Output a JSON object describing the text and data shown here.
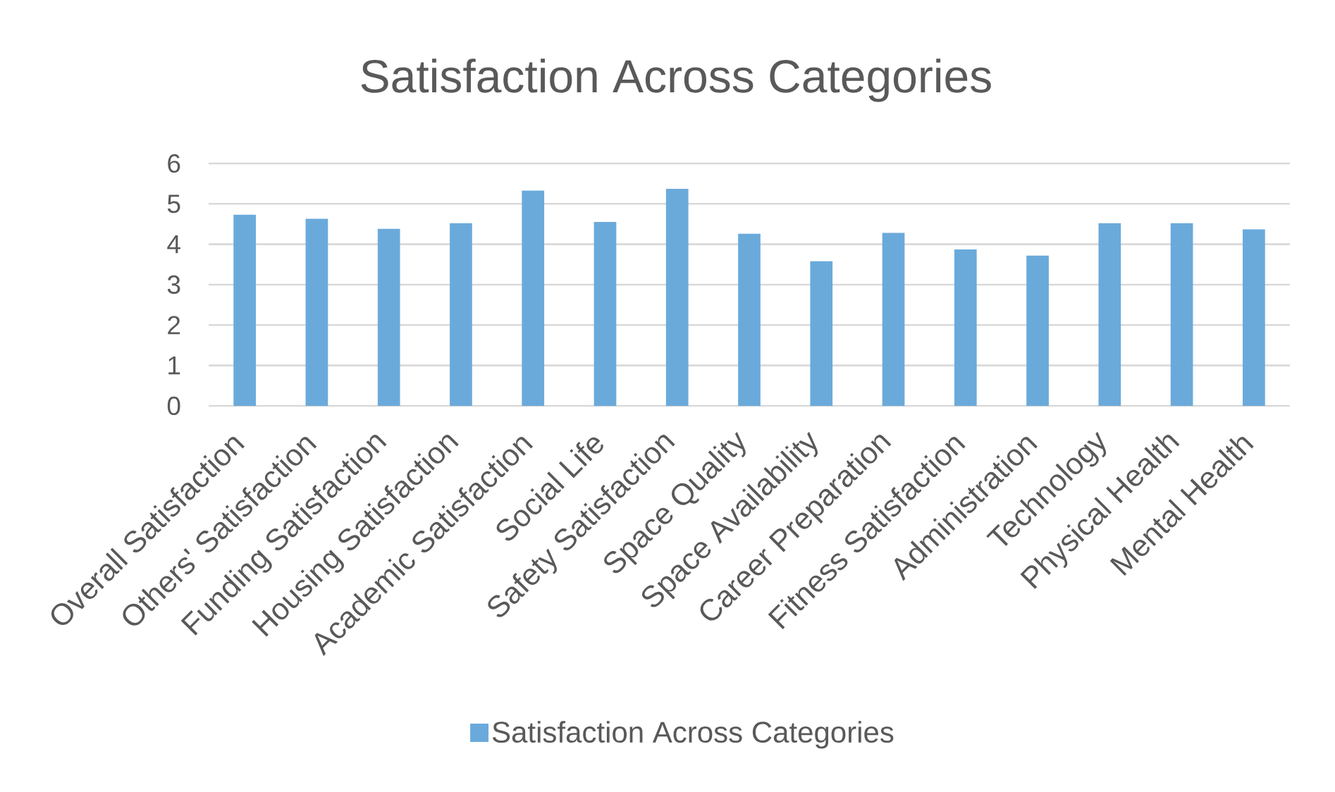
{
  "chart_data": {
    "type": "bar",
    "title": "Satisfaction Across Categories",
    "categories": [
      "Overall Satisfaction",
      "Others' Satisfaction",
      "Funding Satisfaction",
      "Housing Satisfaction",
      "Academic Satisfaction",
      "Social Life",
      "Safety Satisfaction",
      "Space Quality",
      "Space Availability",
      "Career Preparation",
      "Fitness Satisfaction",
      "Administration",
      "Technology",
      "Physical Health",
      "Mental Health"
    ],
    "series": [
      {
        "name": "Satisfaction Across Categories",
        "color": "#6aaadb",
        "values": [
          4.73,
          4.63,
          4.38,
          4.52,
          5.33,
          4.55,
          5.37,
          4.26,
          3.58,
          4.28,
          3.87,
          3.72,
          4.52,
          4.52,
          4.37
        ]
      }
    ],
    "ylim": [
      0,
      6
    ],
    "yticks": [
      0,
      1,
      2,
      3,
      4,
      5,
      6
    ],
    "grid": "y",
    "legend": "bottom"
  }
}
